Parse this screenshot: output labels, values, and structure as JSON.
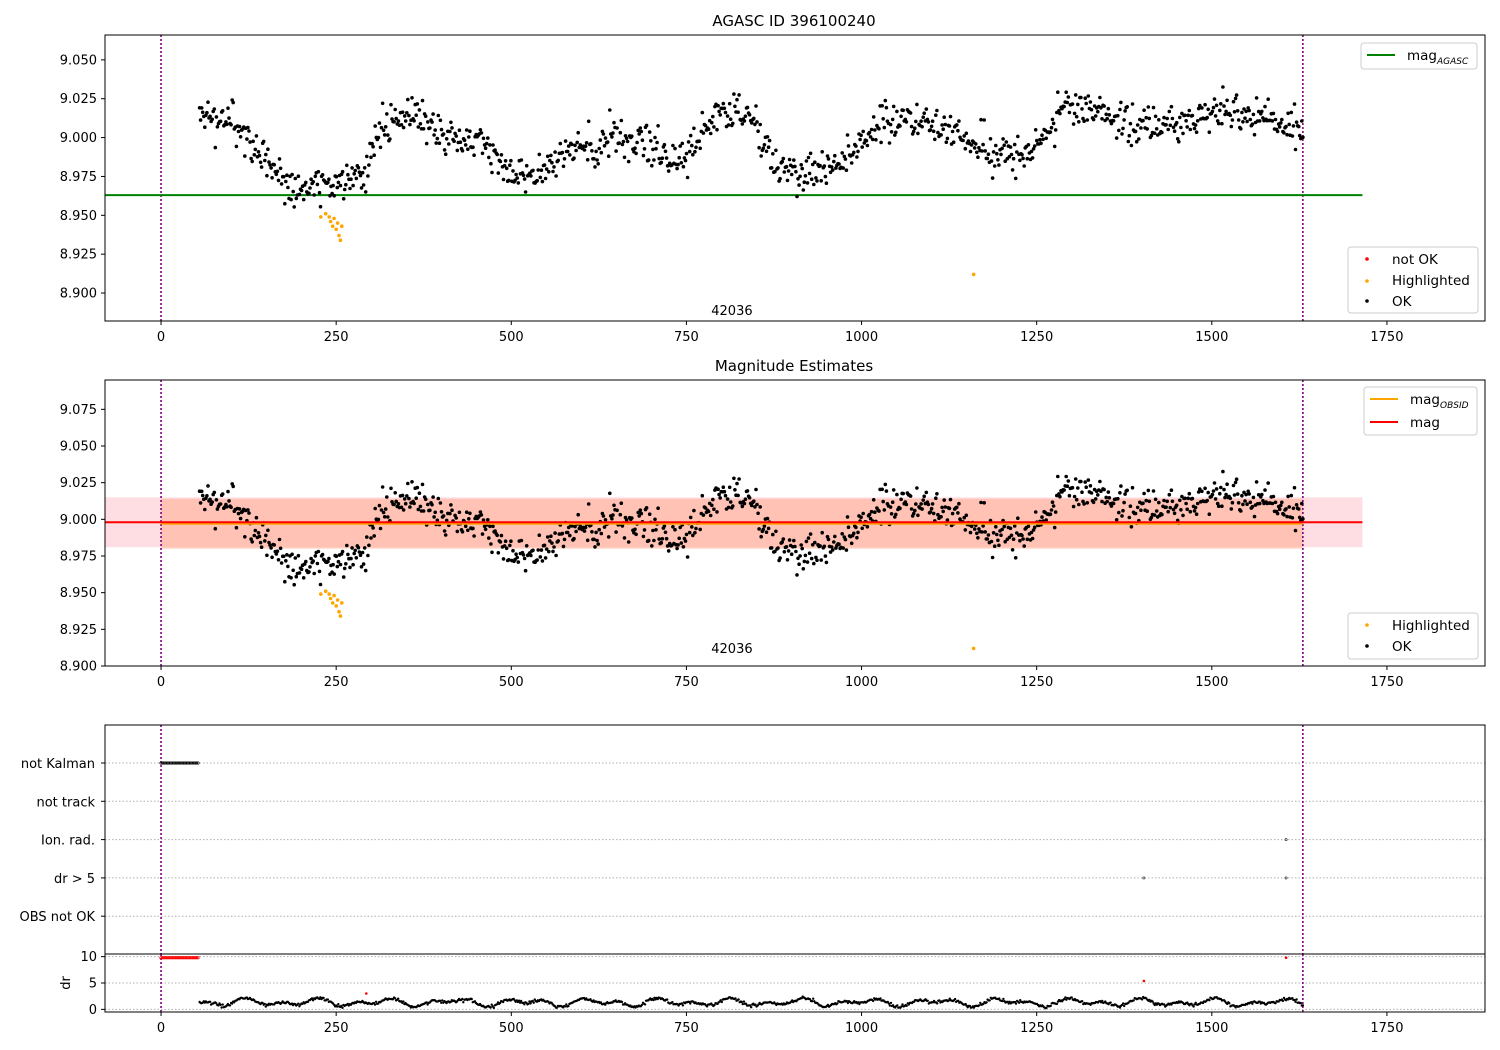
{
  "chart_data": [
    {
      "type": "scatter",
      "title": "AGASC ID 396100240",
      "xlim": [
        -80,
        1890
      ],
      "ylim": [
        8.882,
        9.066
      ],
      "x_ticks": [
        0,
        250,
        500,
        750,
        1000,
        1250,
        1500,
        1750
      ],
      "y_ticks": [
        8.9,
        8.925,
        8.95,
        8.975,
        9.0,
        9.025,
        9.05
      ],
      "x_tick_labels": [
        "0",
        "250",
        "500",
        "750",
        "1000",
        "1250",
        "1500",
        "1750"
      ],
      "y_tick_labels": [
        "8.900",
        "8.925",
        "8.950",
        "8.975",
        "9.000",
        "9.025",
        "9.050"
      ],
      "vlines": [
        0,
        1630
      ],
      "annotation": {
        "text": "42036",
        "x": 815,
        "y": 8.886
      },
      "reference_line": {
        "label": "mag",
        "label_sub": "AGASC",
        "y": 8.963,
        "x_range": [
          -80,
          1715
        ],
        "color": "#008000"
      },
      "series": [
        {
          "name": "OK",
          "color": "#000000",
          "x_range": [
            55,
            1630
          ],
          "count": 1050
        },
        {
          "name": "Highlighted",
          "color": "#ffa500",
          "points": [
            [
              228,
              8.949
            ],
            [
              235,
              8.951
            ],
            [
              240,
              8.949
            ],
            [
              242,
              8.946
            ],
            [
              245,
              8.943
            ],
            [
              247,
              8.948
            ],
            [
              250,
              8.941
            ],
            [
              252,
              8.945
            ],
            [
              254,
              8.937
            ],
            [
              256,
              8.934
            ],
            [
              258,
              8.943
            ],
            [
              1160,
              8.912
            ]
          ]
        },
        {
          "name": "not OK",
          "color": "#ff0000",
          "points": []
        }
      ],
      "legend_line": [
        {
          "label": "mag",
          "sub": "AGASC",
          "color": "#008000"
        }
      ],
      "legend_markers": [
        {
          "label": "not OK",
          "color": "#ff0000"
        },
        {
          "label": "Highlighted",
          "color": "#ffa500"
        },
        {
          "label": "OK",
          "color": "#000000"
        }
      ]
    },
    {
      "type": "scatter",
      "title": "Magnitude Estimates",
      "xlim": [
        -80,
        1890
      ],
      "ylim": [
        8.9,
        9.095
      ],
      "x_ticks": [
        0,
        250,
        500,
        750,
        1000,
        1250,
        1500,
        1750
      ],
      "y_ticks": [
        8.9,
        8.925,
        8.95,
        8.975,
        9.0,
        9.025,
        9.05,
        9.075
      ],
      "x_tick_labels": [
        "0",
        "250",
        "500",
        "750",
        "1000",
        "1250",
        "1500",
        "1750"
      ],
      "y_tick_labels": [
        "8.900",
        "8.925",
        "8.950",
        "8.975",
        "9.000",
        "9.025",
        "9.050",
        "9.075"
      ],
      "vlines": [
        0,
        1630
      ],
      "annotation": {
        "text": "42036",
        "x": 815,
        "y": 8.909
      },
      "mag": {
        "y": 8.998,
        "band": [
          8.981,
          9.015
        ],
        "x_range": [
          -80,
          1715
        ],
        "color": "#ff0000"
      },
      "mag_obsid": {
        "y": 8.997,
        "band": [
          8.98,
          9.014
        ],
        "x_range": [
          0,
          1630
        ],
        "color": "#ffa500"
      },
      "series": [
        {
          "name": "OK",
          "color": "#000000",
          "x_range": [
            55,
            1630
          ],
          "count": 1050
        },
        {
          "name": "Highlighted",
          "color": "#ffa500",
          "points": [
            [
              228,
              8.949
            ],
            [
              235,
              8.951
            ],
            [
              240,
              8.949
            ],
            [
              242,
              8.946
            ],
            [
              245,
              8.943
            ],
            [
              247,
              8.948
            ],
            [
              250,
              8.941
            ],
            [
              252,
              8.945
            ],
            [
              254,
              8.937
            ],
            [
              256,
              8.934
            ],
            [
              258,
              8.943
            ],
            [
              1160,
              8.912
            ]
          ]
        }
      ],
      "legend_line": [
        {
          "label": "mag",
          "sub": "OBSID",
          "color": "#ffa500"
        },
        {
          "label": "mag",
          "sub": "",
          "color": "#ff0000"
        }
      ],
      "legend_markers": [
        {
          "label": "Highlighted",
          "color": "#ffa500"
        },
        {
          "label": "OK",
          "color": "#000000"
        }
      ]
    },
    {
      "type": "scatter",
      "title": "",
      "xlim": [
        -80,
        1890
      ],
      "categories": [
        "not Kalman",
        "not track",
        "Ion. rad.",
        "dr > 5",
        "OBS not OK"
      ],
      "flags": [
        {
          "category": "not Kalman",
          "x_range": [
            0,
            53
          ]
        },
        {
          "category": "Ion. rad.",
          "points": [
            1606
          ]
        },
        {
          "category": "dr > 5",
          "points": [
            1403,
            1606
          ]
        }
      ],
      "vlines": [
        0,
        1630
      ]
    },
    {
      "type": "scatter",
      "title": "",
      "ylabel": "dr",
      "xlim": [
        -80,
        1890
      ],
      "ylim": [
        -0.5,
        10.5
      ],
      "y_ticks": [
        0,
        5,
        10
      ],
      "y_tick_labels": [
        "0",
        "5",
        "10"
      ],
      "x_ticks": [
        0,
        250,
        500,
        750,
        1000,
        1250,
        1500,
        1750
      ],
      "x_tick_labels": [
        "0",
        "250",
        "500",
        "750",
        "1000",
        "1250",
        "1500",
        "1750"
      ],
      "vlines": [
        0,
        1630
      ],
      "series": [
        {
          "name": "dr",
          "color": "#000000",
          "x_range": [
            55,
            1630
          ],
          "y_range": [
            0.2,
            3.0
          ]
        },
        {
          "name": "dr outliers",
          "color": "#ff0000",
          "points_range": {
            "x_range": [
              0,
              53
            ],
            "y": 9.8
          },
          "points": [
            [
              293,
              3.0
            ],
            [
              1403,
              5.4
            ],
            [
              1606,
              9.8
            ]
          ]
        }
      ]
    }
  ]
}
